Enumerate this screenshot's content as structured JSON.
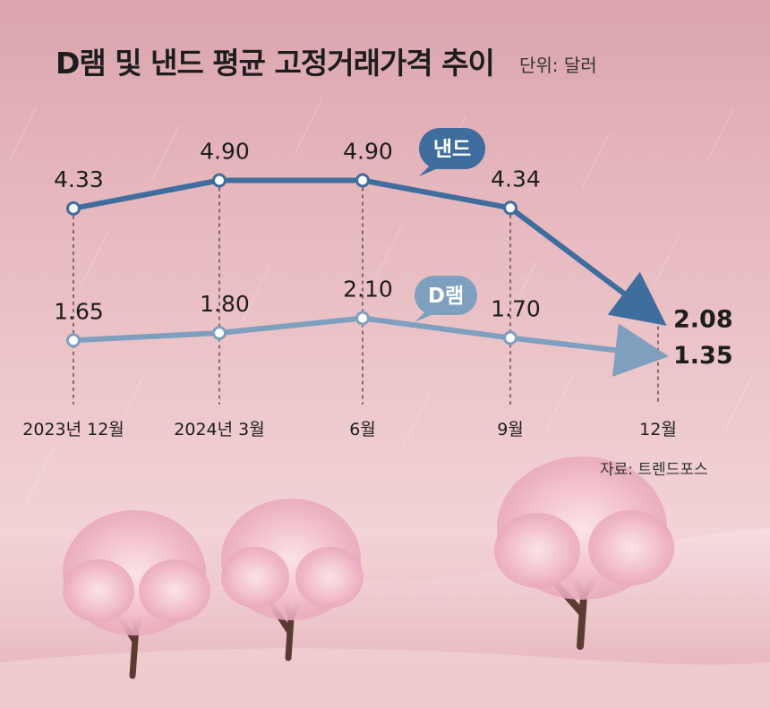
{
  "header": {
    "title": "D램 및 낸드 평균 고정거래가격 추이",
    "unit": "단위: 달러"
  },
  "footer": {
    "source": "자료: 트렌드포스"
  },
  "colors": {
    "nand": "#3f6d9e",
    "dram": "#7f9fbe",
    "text": "#1d1d1d"
  },
  "chart_data": {
    "type": "line",
    "categories": [
      "2023년 12월",
      "2024년 3월",
      "6월",
      "9월",
      "12월"
    ],
    "series": [
      {
        "name": "낸드",
        "values": [
          4.33,
          4.9,
          4.9,
          4.34,
          2.08
        ],
        "labels": [
          "4.33",
          "4.90",
          "4.90",
          "4.34",
          "2.08"
        ]
      },
      {
        "name": "D램",
        "values": [
          1.65,
          1.8,
          2.1,
          1.7,
          1.35
        ],
        "labels": [
          "1.65",
          "1.80",
          "2.10",
          "1.70",
          "1.35"
        ]
      }
    ],
    "title": "D램 및 낸드 평균 고정거래가격 추이",
    "ylabel": "단위: 달러",
    "grid": false,
    "legend": "inline-bubbles"
  }
}
